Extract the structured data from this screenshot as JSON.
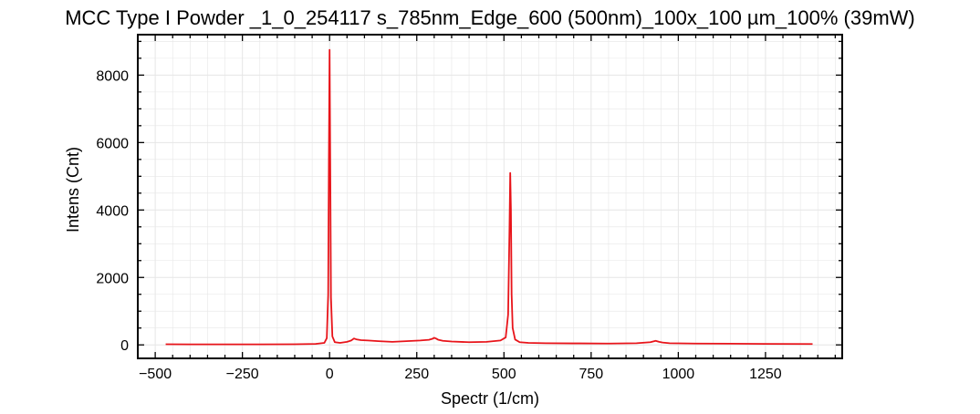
{
  "chart_data": {
    "type": "line",
    "title": "MCC Type I Powder _1_0_254117 s_785nm_Edge_600 (500nm)_100x_100 µm_100% (39mW)",
    "xlabel": "Spectr (1/cm)",
    "ylabel": "Intens (Cnt)",
    "xlim": [
      -550,
      1470
    ],
    "ylim": [
      -400,
      9200
    ],
    "xticks": [
      -500,
      -250,
      0,
      250,
      500,
      750,
      1000,
      1250
    ],
    "xtick_labels": [
      "−500",
      "−250",
      "0",
      "250",
      "500",
      "750",
      "1000",
      "1250"
    ],
    "yticks": [
      0,
      2000,
      4000,
      6000,
      8000
    ],
    "ytick_labels": [
      "0",
      "2000",
      "4000",
      "6000",
      "8000"
    ],
    "grid": true,
    "colors": {
      "line": "#e8141a",
      "grid": "#e6e6e6",
      "axes": "#000000"
    },
    "series": [
      {
        "x": [
          -470,
          -400,
          -300,
          -200,
          -100,
          -40,
          -15,
          -8,
          -4,
          -2,
          0,
          2,
          4,
          8,
          15,
          30,
          50,
          62,
          70,
          78,
          90,
          110,
          140,
          180,
          220,
          260,
          285,
          295,
          300,
          305,
          312,
          325,
          350,
          400,
          450,
          490,
          505,
          512,
          516,
          518,
          520,
          522,
          525,
          532,
          545,
          570,
          620,
          700,
          800,
          880,
          920,
          935,
          945,
          955,
          975,
          1050,
          1150,
          1250,
          1385
        ],
        "y": [
          20,
          15,
          15,
          15,
          20,
          30,
          60,
          200,
          1500,
          5500,
          8750,
          5200,
          1400,
          250,
          80,
          60,
          90,
          130,
          190,
          160,
          140,
          130,
          110,
          90,
          110,
          130,
          150,
          180,
          210,
          190,
          150,
          120,
          100,
          80,
          90,
          130,
          220,
          900,
          3500,
          5100,
          4000,
          1500,
          500,
          160,
          80,
          60,
          50,
          45,
          40,
          50,
          80,
          120,
          90,
          70,
          50,
          40,
          35,
          30,
          25
        ]
      }
    ]
  }
}
